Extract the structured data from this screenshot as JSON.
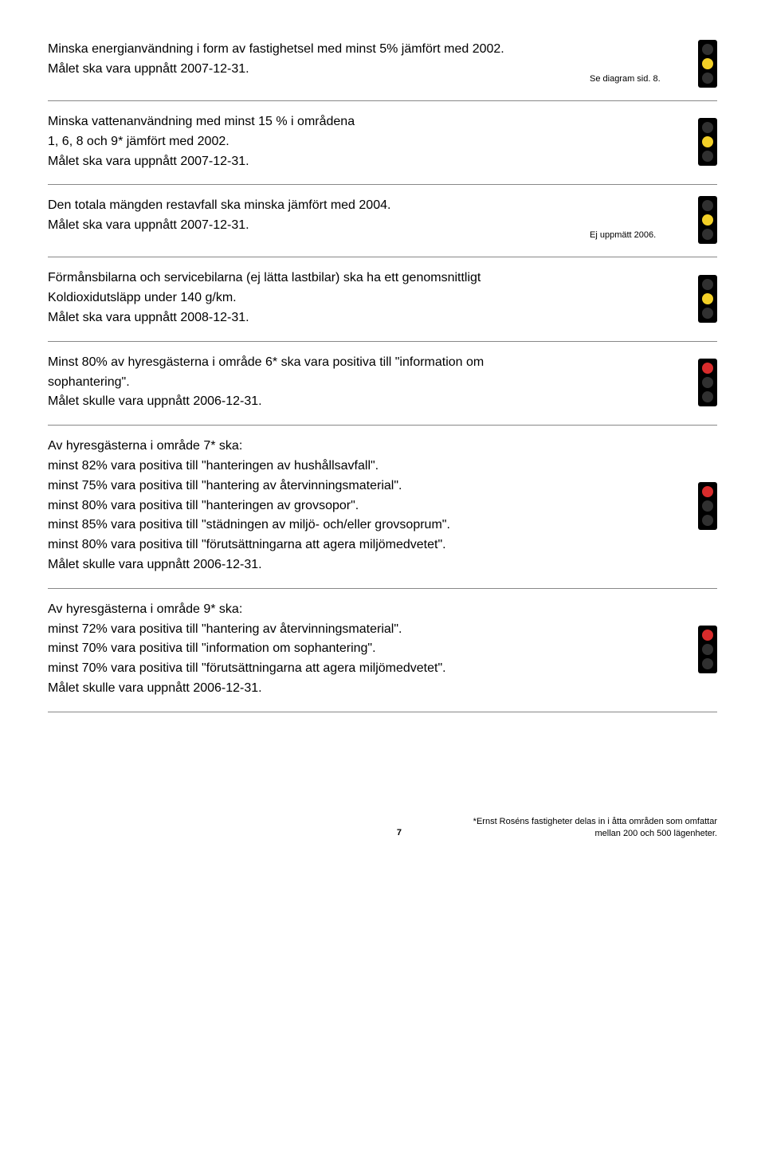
{
  "colors": {
    "light_housing": "#000000",
    "lamp_off": "#303030",
    "lamp_red": "#d82c2c",
    "lamp_yellow": "#f3d027",
    "lamp_green": "#3bab3b",
    "divider": "#888888",
    "page_bg": "#ffffff",
    "text": "#000000"
  },
  "sections": [
    {
      "lines": [
        "Minska energianvändning i form av fastighetsel med minst 5% jämfört med 2002.",
        "Målet ska vara uppnått 2007-12-31."
      ],
      "note": "Se diagram sid. 8.",
      "light": "yellow"
    },
    {
      "lines": [
        "Minska vattenanvändning med minst 15 % i områdena",
        "1, 6, 8 och 9* jämfört med 2002.",
        "Målet ska vara uppnått 2007-12-31."
      ],
      "note": "",
      "light": "yellow"
    },
    {
      "lines": [
        "Den totala mängden restavfall ska minska jämfört med 2004.",
        "Målet ska vara uppnått 2007-12-31."
      ],
      "note": "Ej uppmätt 2006.",
      "light": "yellow"
    },
    {
      "lines": [
        "Förmånsbilarna och servicebilarna (ej lätta lastbilar) ska ha ett genomsnittligt Koldioxidutsläpp under 140 g/km.",
        "Målet ska vara uppnått 2008-12-31."
      ],
      "note": "",
      "light": "yellow"
    },
    {
      "lines": [
        "Minst 80% av hyresgästerna i område 6* ska vara positiva till \"information om sophantering\".",
        "Målet skulle vara uppnått 2006-12-31."
      ],
      "note": "",
      "light": "red"
    },
    {
      "lines": [
        "Av hyresgästerna i område 7* ska:",
        "minst 82% vara positiva till \"hanteringen av hushållsavfall\".",
        "minst 75% vara positiva till \"hantering av återvinningsmaterial\".",
        "minst 80% vara positiva till \"hanteringen av grovsopor\".",
        "minst 85% vara positiva till \"städningen av miljö- och/eller grovsoprum\".",
        "minst 80% vara positiva till \"förutsättningarna att agera miljömedvetet\".",
        "Målet skulle vara uppnått 2006-12-31."
      ],
      "note": "",
      "light": "red"
    },
    {
      "lines": [
        "Av hyresgästerna i område 9* ska:",
        "minst 72% vara positiva till \"hantering av återvinningsmaterial\".",
        "minst 70% vara positiva till \"information om sophantering\".",
        "minst 70% vara positiva till \"förutsättningarna att agera miljömedvetet\".",
        "Målet skulle vara uppnått 2006-12-31."
      ],
      "note": "",
      "light": "red"
    }
  ],
  "footer": {
    "page_number": "7",
    "footnote_line1": "*Ernst Roséns fastigheter delas in i åtta områden som omfattar",
    "footnote_line2": "mellan 200 och 500 lägenheter."
  }
}
